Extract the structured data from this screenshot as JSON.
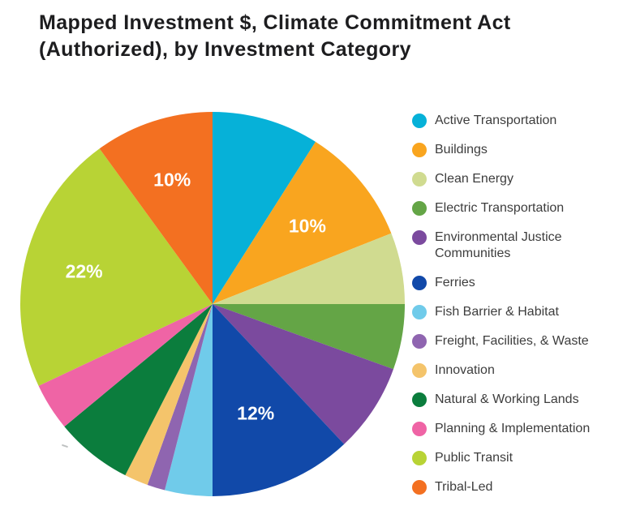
{
  "header": {
    "title_line1": "Mapped Investment $, Climate Commitment Act",
    "title_line2": "(Authorized), by Investment Category"
  },
  "chart_data": {
    "type": "pie",
    "title": "Mapped Investment $, Climate Commitment Act (Authorized), by Investment Category",
    "direction": "clockwise",
    "start_angle_deg": 0,
    "legend_position": "right",
    "label_color": "#ffffff",
    "slices": [
      {
        "category": "Active Transportation",
        "value": 9,
        "color": "#06b1d8",
        "pct_label": ""
      },
      {
        "category": "Buildings",
        "value": 10,
        "color": "#f9a51f",
        "pct_label": "10%"
      },
      {
        "category": "Clean Energy",
        "value": 6,
        "color": "#d0db90",
        "pct_label": ""
      },
      {
        "category": "Electric Transportation",
        "value": 5.5,
        "color": "#64a546",
        "pct_label": ""
      },
      {
        "category": "Environmental Justice Communities",
        "value": 7.5,
        "color": "#7b4a9e",
        "pct_label": ""
      },
      {
        "category": "Ferries",
        "value": 12,
        "color": "#1149a9",
        "pct_label": "12%"
      },
      {
        "category": "Fish Barrier & Habitat",
        "value": 4,
        "color": "#70cbea",
        "pct_label": ""
      },
      {
        "category": "Freight, Facilities, & Waste",
        "value": 1.5,
        "color": "#8f65b0",
        "pct_label": ""
      },
      {
        "category": "Innovation",
        "value": 2,
        "color": "#f4c46b",
        "pct_label": ""
      },
      {
        "category": "Natural & Working Lands",
        "value": 6.5,
        "color": "#0b7d3d",
        "pct_label": ""
      },
      {
        "category": "Planning & Implementation",
        "value": 4,
        "color": "#ef64a5",
        "pct_label": ""
      },
      {
        "category": "Public Transit",
        "value": 22,
        "color": "#b8d335",
        "pct_label": "22%"
      },
      {
        "category": "Tribal-Led",
        "value": 10,
        "color": "#f37021",
        "pct_label": "10%"
      }
    ]
  }
}
